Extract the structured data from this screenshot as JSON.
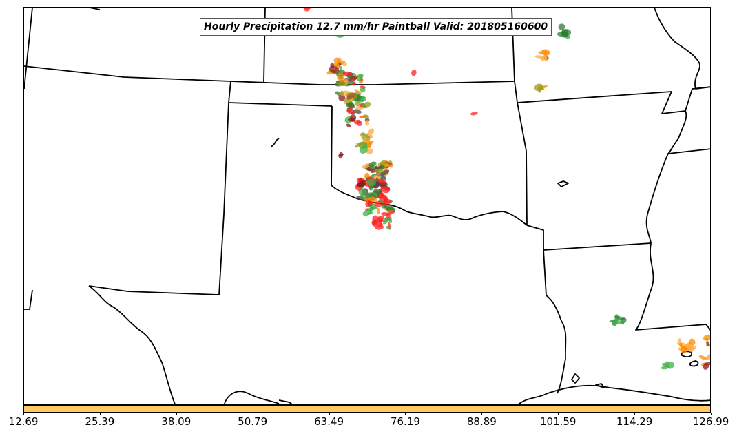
{
  "title": "Hourly Precipitation 12.7 mm/hr Paintball Valid: 201805160600",
  "colorbar": {
    "color": "#ffc966",
    "ticks": [
      "12.69",
      "25.39",
      "38.09",
      "50.79",
      "63.49",
      "76.19",
      "88.89",
      "101.59",
      "114.29",
      "126.99"
    ]
  },
  "colors": {
    "member_palette": [
      "#ff2020",
      "#ff8c00",
      "#ffa940",
      "#3cb043",
      "#2e7d32",
      "#8b1a1a",
      "#a0522d",
      "#9a9a1a",
      "#444444"
    ],
    "boundary": "#000000"
  }
}
